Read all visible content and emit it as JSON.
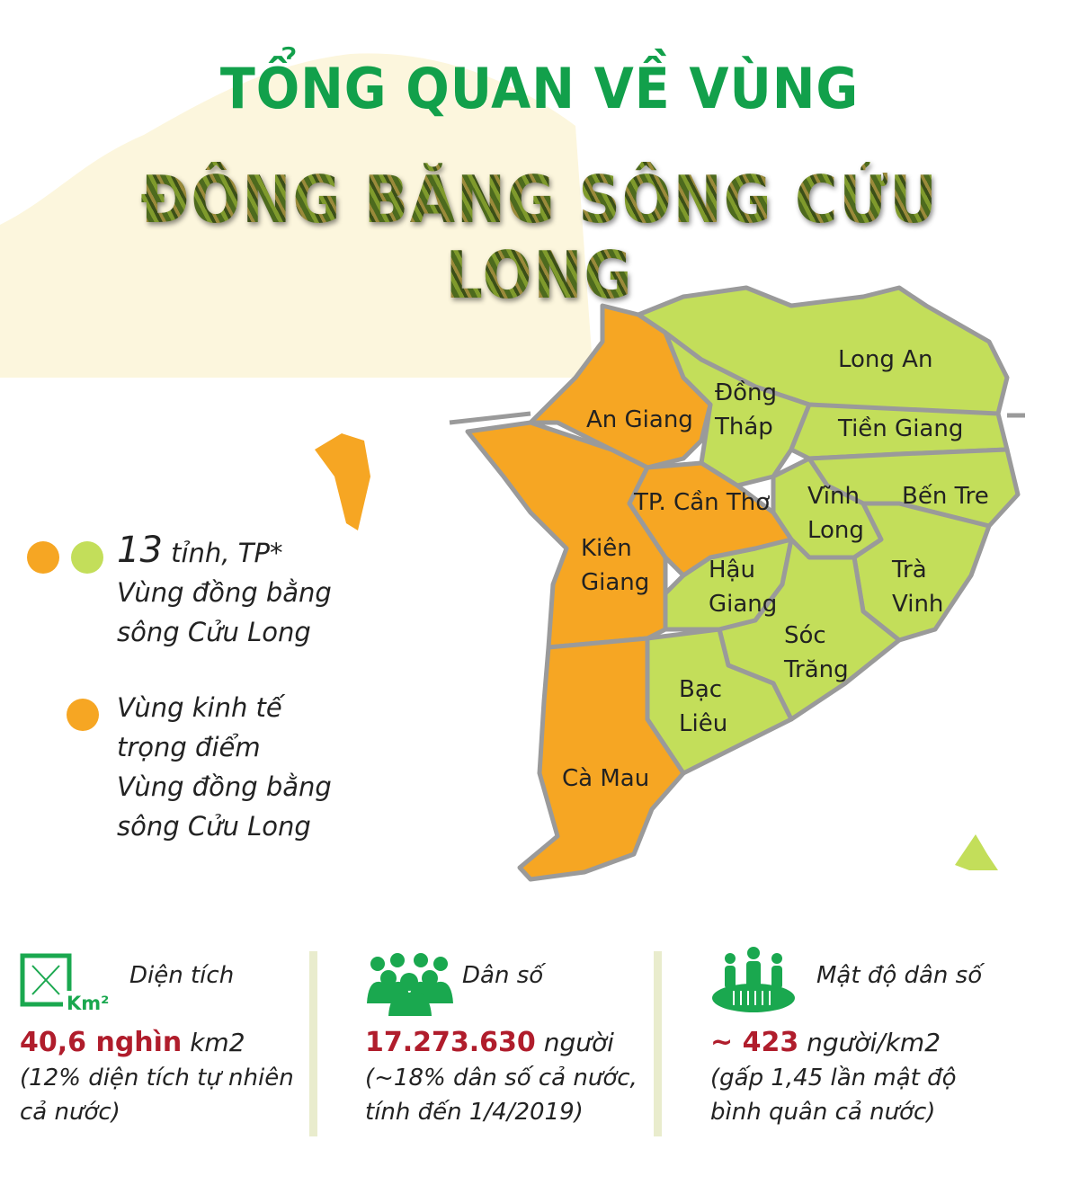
{
  "header": {
    "title_line1": "TỔNG QUAN VỀ VÙNG",
    "title_line2": "ĐỒNG BẰNG SÔNG CỬU LONG"
  },
  "colors": {
    "title_green": "#12a04b",
    "key_economic_zone": "#f6a623",
    "other_provinces": "#c3de5a",
    "border": "#9a9a9a",
    "highlight_red": "#b01d2c"
  },
  "map": {
    "provinces": [
      {
        "name": "An Giang",
        "zone": "key"
      },
      {
        "name": "Kiên Giang",
        "zone": "key"
      },
      {
        "name": "TP. Cần Thơ",
        "zone": "key"
      },
      {
        "name": "Cà Mau",
        "zone": "key"
      },
      {
        "name": "Long An",
        "zone": "region"
      },
      {
        "name": "Đồng Tháp",
        "zone": "region"
      },
      {
        "name": "Tiền Giang",
        "zone": "region"
      },
      {
        "name": "Bến Tre",
        "zone": "region"
      },
      {
        "name": "Vĩnh Long",
        "zone": "region"
      },
      {
        "name": "Trà Vinh",
        "zone": "region"
      },
      {
        "name": "Hậu Giang",
        "zone": "region"
      },
      {
        "name": "Sóc Trăng",
        "zone": "region"
      },
      {
        "name": "Bạc Liêu",
        "zone": "region"
      }
    ],
    "labels": {
      "an_giang": "An Giang",
      "dong": "Đồng",
      "thap": "Tháp",
      "long_an": "Long An",
      "tien_giang": "Tiền Giang",
      "can_tho": "TP. Cần Thơ",
      "vinh": "Vĩnh",
      "long": "Long",
      "ben_tre": "Bến Tre",
      "kien": "Kiên",
      "giang": "Giang",
      "hau": "Hậu",
      "hau_giang": "Giang",
      "tra": "Trà",
      "tra_vinh": "Vinh",
      "soc": "Sóc",
      "trang": "Trăng",
      "bac": "Bạc",
      "lieu": "Liêu",
      "ca_mau": "Cà Mau"
    }
  },
  "legend": {
    "item1": {
      "count": "13",
      "line1_rest": " tỉnh, TP*",
      "line2": "Vùng đồng bằng",
      "line3": "sông Cửu Long"
    },
    "item2": {
      "line1": "Vùng kinh tế",
      "line2": "trọng điểm",
      "line3": "Vùng đồng bằng",
      "line4": "sông Cửu Long"
    }
  },
  "stats": [
    {
      "icon": "area-km2-icon",
      "label": "Diện tích",
      "value": "40,6 nghìn",
      "unit": " km2",
      "note1": "(12% diện tích tự nhiên",
      "note2": "cả nước)",
      "icon_text": "Km²"
    },
    {
      "icon": "population-group-icon",
      "label": "Dân số",
      "value": "17.273.630",
      "unit": " người",
      "note1": "(~18% dân số cả nước,",
      "note2": "tính đến 1/4/2019)"
    },
    {
      "icon": "population-density-icon",
      "label": "Mật độ dân số",
      "value": "~ 423",
      "unit": " người/km2",
      "note1": "(gấp 1,45 lần mật độ",
      "note2": "bình quân cả nước)"
    }
  ]
}
